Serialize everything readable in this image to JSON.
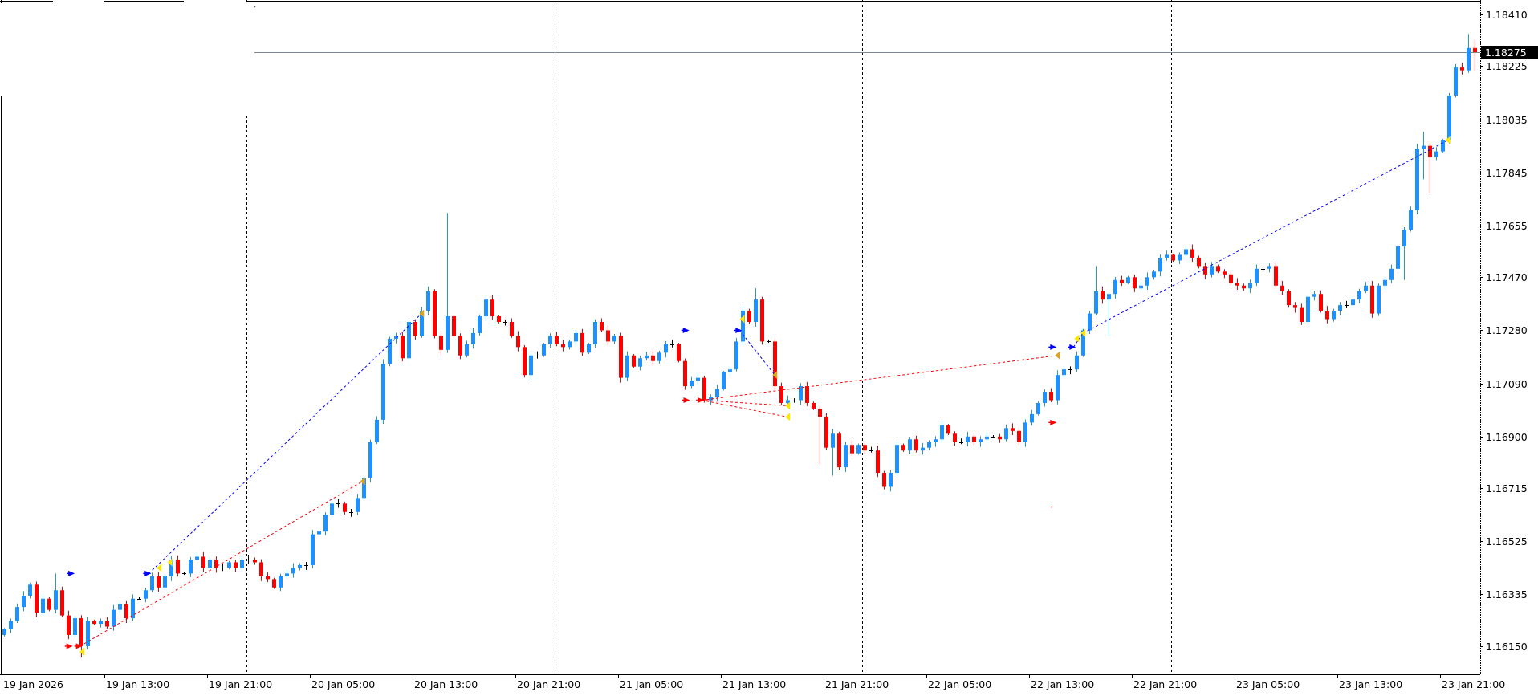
{
  "chart_data": {
    "type": "candlestick",
    "timeframe_minutes": 30,
    "ylim": [
      1.1611,
      1.1848
    ],
    "colors": {
      "bull": "#1E90FF",
      "bear": "#FF0000",
      "doji": "#000000",
      "bid_line": "#778899",
      "buy_marker": "#0000FF",
      "sell_marker": "#FF0000",
      "entry_marker": "#FFE600",
      "exit_marker": "#DAA520"
    },
    "first_open": 1.1619,
    "closes": [
      1.1621,
      1.1624,
      1.1629,
      1.1633,
      1.1637,
      1.1627,
      1.1632,
      1.1628,
      1.1635,
      1.1626,
      1.1619,
      1.1625,
      1.1615,
      1.1624,
      1.1623,
      1.1624,
      1.1622,
      1.1628,
      1.163,
      1.1625,
      1.1632,
      1.1632,
      1.1635,
      1.164,
      1.1636,
      1.164,
      1.1646,
      1.1641,
      1.1641,
      1.1646,
      1.1647,
      1.1643,
      1.1646,
      1.1643,
      1.1643,
      1.1645,
      1.1643,
      1.1646,
      1.1646,
      1.1645,
      1.164,
      1.1639,
      1.1636,
      1.164,
      1.1641,
      1.1643,
      1.1644,
      1.1644,
      1.1655,
      1.1656,
      1.1662,
      1.1666,
      1.1666,
      1.1663,
      1.1663,
      1.1668,
      1.1675,
      1.1688,
      1.1696,
      1.1716,
      1.1725,
      1.1726,
      1.1718,
      1.1731,
      1.1726,
      1.1735,
      1.1742,
      1.1726,
      1.1721,
      1.1733,
      1.1726,
      1.1719,
      1.1723,
      1.1727,
      1.1733,
      1.1739,
      1.1733,
      1.1731,
      1.1731,
      1.1726,
      1.1722,
      1.1712,
      1.1719,
      1.1719,
      1.1723,
      1.1726,
      1.1723,
      1.1722,
      1.1724,
      1.1727,
      1.172,
      1.1723,
      1.1731,
      1.1728,
      1.1724,
      1.1726,
      1.1711,
      1.1719,
      1.1715,
      1.1718,
      1.1719,
      1.1717,
      1.172,
      1.1723,
      1.1723,
      1.1717,
      1.1708,
      1.171,
      1.1711,
      1.1703,
      1.1704,
      1.1707,
      1.1713,
      1.1714,
      1.1724,
      1.1735,
      1.1731,
      1.1739,
      1.1724,
      1.1724,
      1.1708,
      1.1702,
      1.1703,
      1.1703,
      1.1708,
      1.1702,
      1.17,
      1.1697,
      1.1686,
      1.1691,
      1.1679,
      1.1687,
      1.1684,
      1.1687,
      1.1685,
      1.1685,
      1.1677,
      1.1672,
      1.1677,
      1.1687,
      1.1685,
      1.1689,
      1.1685,
      1.1686,
      1.1688,
      1.1689,
      1.1694,
      1.1691,
      1.1688,
      1.1688,
      1.169,
      1.1688,
      1.1689,
      1.169,
      1.169,
      1.1689,
      1.1693,
      1.1692,
      1.1688,
      1.1695,
      1.1698,
      1.1702,
      1.1706,
      1.1703,
      1.1712,
      1.1714,
      1.1714,
      1.1719,
      1.1728,
      1.1734,
      1.1742,
      1.1739,
      1.1741,
      1.1746,
      1.1745,
      1.1747,
      1.1743,
      1.1744,
      1.1747,
      1.1749,
      1.1754,
      1.1755,
      1.1753,
      1.1755,
      1.1757,
      1.1754,
      1.1751,
      1.1748,
      1.1751,
      1.1749,
      1.1748,
      1.1745,
      1.1744,
      1.1743,
      1.1745,
      1.175,
      1.175,
      1.1751,
      1.1744,
      1.1742,
      1.1737,
      1.1736,
      1.1731,
      1.174,
      1.1741,
      1.1735,
      1.1732,
      1.1735,
      1.1737,
      1.1737,
      1.1739,
      1.1742,
      1.1744,
      1.1734,
      1.1744,
      1.1746,
      1.175,
      1.1758,
      1.1764,
      1.1771,
      1.1793,
      1.1794,
      1.179,
      1.1792,
      1.1796,
      1.1812,
      1.1822,
      1.1821,
      1.1829,
      1.18275
    ],
    "wick_overrides": [
      {
        "i": 8,
        "h": 1.1641
      },
      {
        "i": 12,
        "l": 1.1611
      },
      {
        "i": 69,
        "h": 1.177
      },
      {
        "i": 117,
        "h": 1.1743
      },
      {
        "i": 118,
        "h": 1.174
      },
      {
        "i": 127,
        "l": 1.168
      },
      {
        "i": 129,
        "l": 1.1676
      },
      {
        "i": 170,
        "h": 1.1751
      },
      {
        "i": 172,
        "l": 1.1726
      },
      {
        "i": 218,
        "l": 1.1746
      },
      {
        "i": 221,
        "h": 1.1799,
        "l": 1.1782
      },
      {
        "i": 222,
        "l": 1.1777
      },
      {
        "i": 228,
        "h": 1.1834
      },
      {
        "i": 229,
        "h": 1.1832,
        "l": 1.1821
      }
    ],
    "price_ticks": [
      "1.18410",
      "1.18225",
      "1.18035",
      "1.17845",
      "1.17655",
      "1.17470",
      "1.17280",
      "1.17090",
      "1.16900",
      "1.16715",
      "1.16525",
      "1.16335",
      "1.16150"
    ],
    "time_labels": [
      "19 Jan 2026",
      "19 Jan 13:00",
      "19 Jan 21:00",
      "20 Jan 05:00",
      "20 Jan 13:00",
      "20 Jan 21:00",
      "21 Jan 05:00",
      "21 Jan 13:00",
      "21 Jan 21:00",
      "22 Jan 05:00",
      "22 Jan 13:00",
      "22 Jan 21:00",
      "23 Jan 05:00",
      "23 Jan 13:00",
      "23 Jan 21:00"
    ],
    "day_separators": [
      37.8,
      85.8,
      133.7,
      181.8
    ],
    "bid_price": "1.18275",
    "trade_lines": [
      {
        "color": "blue",
        "from": [
          22.6,
          1.1641
        ],
        "to": [
          65.1,
          1.1734
        ]
      },
      {
        "color": "red",
        "from": [
          11.9,
          1.1615
        ],
        "to": [
          55.9,
          1.1674
        ]
      },
      {
        "color": "blue",
        "from": [
          114.6,
          1.1728
        ],
        "to": [
          120.1,
          1.1712
        ]
      },
      {
        "color": "red",
        "from": [
          108.7,
          1.1703
        ],
        "to": [
          122.1,
          1.1701
        ]
      },
      {
        "color": "red",
        "from": [
          108.7,
          1.1703
        ],
        "to": [
          122.1,
          1.1697
        ]
      },
      {
        "color": "red",
        "from": [
          108.7,
          1.1703
        ],
        "to": [
          164.1,
          1.1719
        ]
      },
      {
        "color": "blue",
        "from": [
          166.6,
          1.1722
        ],
        "to": [
          168.1,
          1.1727
        ]
      },
      {
        "color": "blue",
        "from": [
          168.1,
          1.1727
        ],
        "to": [
          224.9,
          1.1796
        ]
      }
    ],
    "markers": [
      {
        "kind": "buy-arrow",
        "i": 10.7,
        "p": 1.1641
      },
      {
        "kind": "buy-arrow",
        "i": 22.6,
        "p": 1.1641
      },
      {
        "kind": "sell-arrow",
        "i": 10.4,
        "p": 1.1615
      },
      {
        "kind": "sell-arrow",
        "i": 11.9,
        "p": 1.1615
      },
      {
        "kind": "entry-triangle",
        "i": 12.2,
        "p": 1.1613
      },
      {
        "kind": "entry-triangle",
        "i": 24.2,
        "p": 1.1643
      },
      {
        "kind": "entry-triangle",
        "i": 25.9,
        "p": 1.1645
      },
      {
        "kind": "exit-triangle",
        "i": 55.9,
        "p": 1.1674
      },
      {
        "kind": "exit-triangle",
        "i": 65.1,
        "p": 1.1734
      },
      {
        "kind": "buy-arrow",
        "i": 106.4,
        "p": 1.1728
      },
      {
        "kind": "buy-arrow",
        "i": 114.6,
        "p": 1.1728
      },
      {
        "kind": "entry-triangle",
        "i": 115.0,
        "p": 1.1732
      },
      {
        "kind": "exit-triangle",
        "i": 120.1,
        "p": 1.1712
      },
      {
        "kind": "sell-arrow",
        "i": 106.5,
        "p": 1.1703
      },
      {
        "kind": "sell-arrow",
        "i": 108.7,
        "p": 1.1703
      },
      {
        "kind": "entry-triangle",
        "i": 122.1,
        "p": 1.1701
      },
      {
        "kind": "entry-triangle",
        "i": 122.1,
        "p": 1.1697
      },
      {
        "kind": "exit-triangle",
        "i": 164.1,
        "p": 1.1719
      },
      {
        "kind": "buy-arrow",
        "i": 163.6,
        "p": 1.1722
      },
      {
        "kind": "buy-arrow",
        "i": 166.6,
        "p": 1.1722
      },
      {
        "kind": "sell-arrow",
        "i": 163.6,
        "p": 1.1695
      },
      {
        "kind": "entry-triangle",
        "i": 167.1,
        "p": 1.1725
      },
      {
        "kind": "entry-triangle",
        "i": 168.1,
        "p": 1.1727
      },
      {
        "kind": "entry-triangle",
        "i": 224.9,
        "p": 1.1796
      },
      {
        "kind": "dot",
        "i": 163.1,
        "p": 1.1665
      }
    ]
  }
}
